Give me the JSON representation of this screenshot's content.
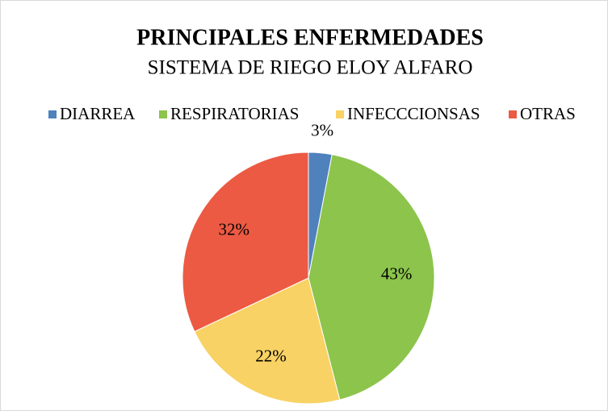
{
  "chart_data": {
    "type": "pie",
    "title": "PRINCIPALES ENFERMEDADES",
    "subtitle": "SISTEMA DE RIEGO ELOY ALFARO",
    "categories": [
      "DIARREA",
      "RESPIRATORIAS",
      "INFECCCIONSAS",
      "OTRAS"
    ],
    "values": [
      3,
      43,
      22,
      32
    ],
    "value_labels": [
      "3%",
      "43%",
      "22%",
      "32%"
    ],
    "colors": [
      "#4f81bd",
      "#8cc44c",
      "#f8d264",
      "#ec5a43"
    ],
    "legend": "top"
  }
}
